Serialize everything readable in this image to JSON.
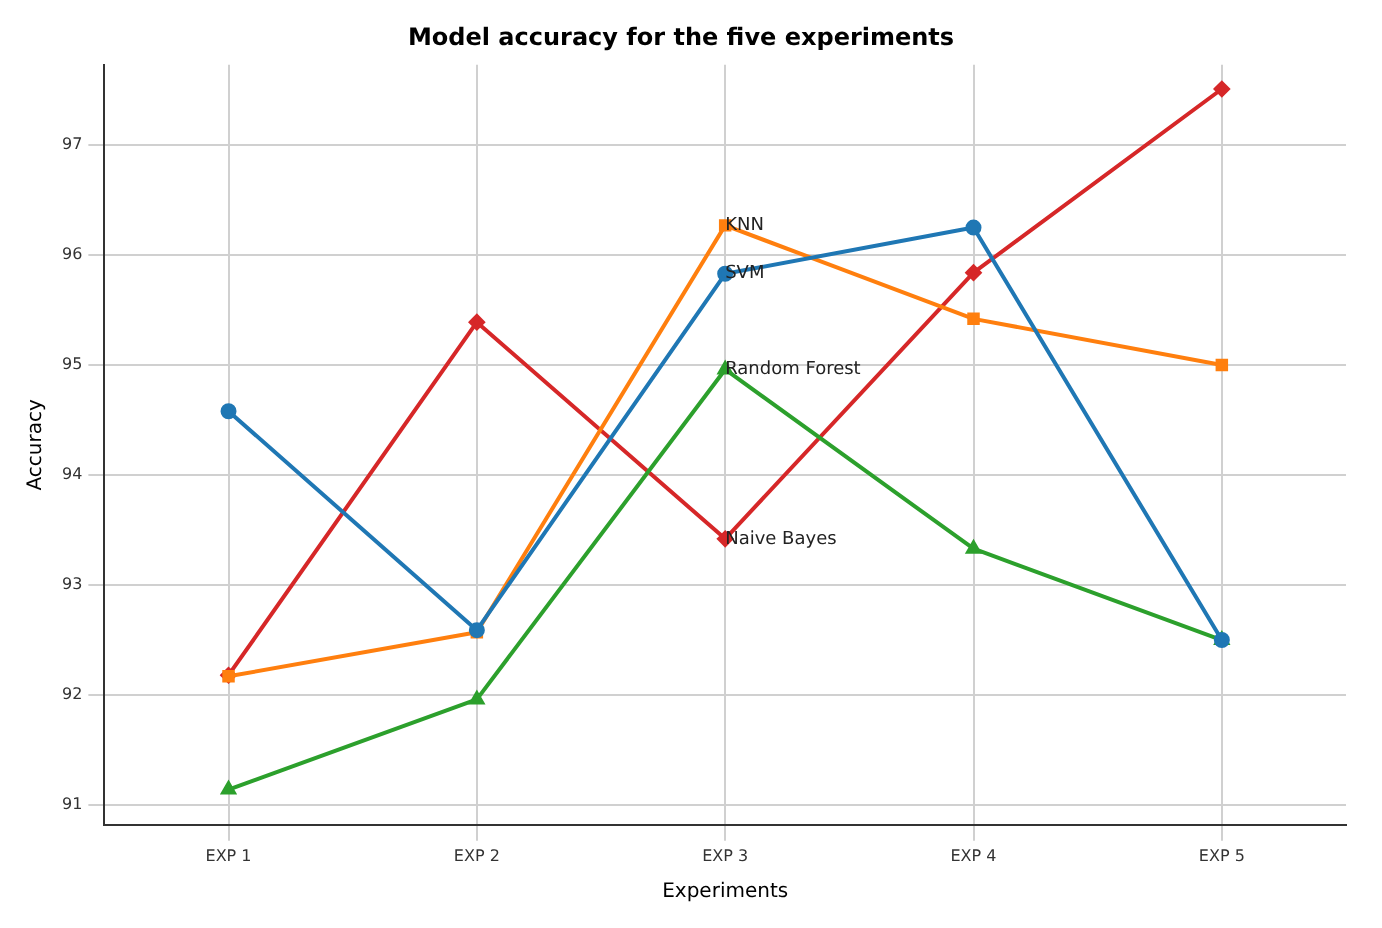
{
  "chart_data": {
    "type": "line",
    "title": "Model accuracy for the five experiments",
    "xlabel": "Experiments",
    "ylabel": "Accuracy",
    "categories": [
      "EXP 1",
      "EXP 2",
      "EXP 3",
      "EXP 4",
      "EXP 5"
    ],
    "series": [
      {
        "name": "SVM",
        "color": "#1f77b4",
        "marker": "circle",
        "values": [
          94.58,
          92.59,
          95.83,
          96.25,
          92.5
        ]
      },
      {
        "name": "KNN",
        "color": "#ff7f0e",
        "marker": "square",
        "values": [
          92.17,
          92.57,
          96.27,
          95.42,
          95.0
        ]
      },
      {
        "name": "Random Forest",
        "color": "#2ca02c",
        "marker": "triangle",
        "values": [
          91.14,
          91.96,
          94.96,
          93.33,
          92.5
        ]
      },
      {
        "name": "Naive Bayes",
        "color": "#d62728",
        "marker": "diamond",
        "values": [
          92.18,
          95.39,
          93.42,
          95.84,
          97.51
        ]
      }
    ],
    "ylim": [
      90.82,
      97.73
    ],
    "yticks": [
      91,
      92,
      93,
      94,
      95,
      96,
      97
    ],
    "grid": true,
    "legend": false
  }
}
